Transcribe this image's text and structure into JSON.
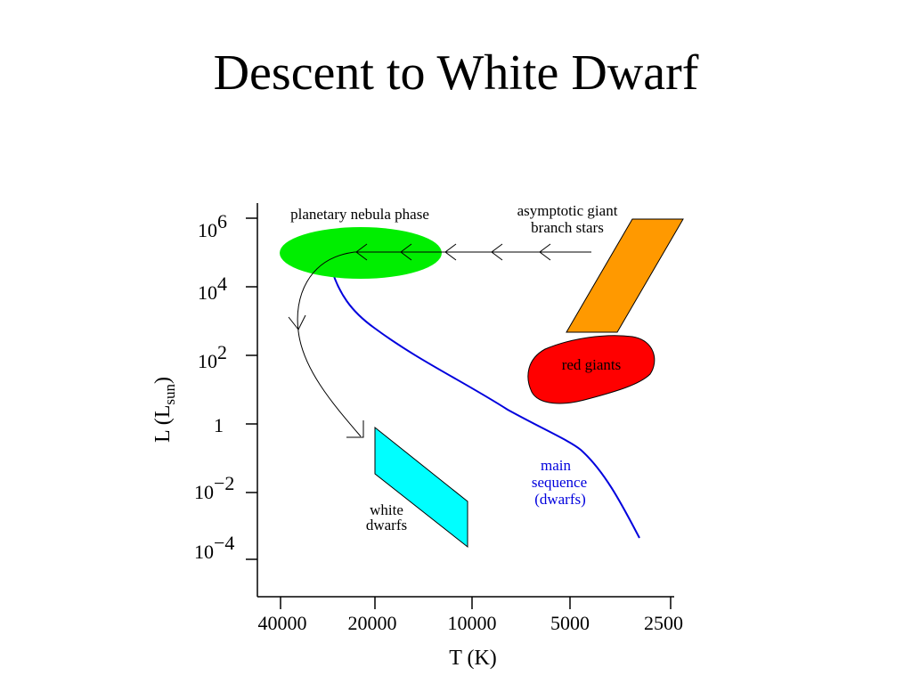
{
  "slide": {
    "title": "Descent to White Dwarf"
  },
  "diagram": {
    "y_axis": {
      "label_main": "L (L",
      "label_sub": "sun",
      "label_close": ")",
      "ticks": [
        {
          "base": "10",
          "exp": "6"
        },
        {
          "base": "10",
          "exp": "4"
        },
        {
          "base": "10",
          "exp": "2"
        },
        {
          "base": "1",
          "exp": ""
        },
        {
          "base": "10",
          "exp": "−2"
        },
        {
          "base": "10",
          "exp": "−4"
        }
      ]
    },
    "x_axis": {
      "label": "T (K)",
      "ticks": [
        "40000",
        "20000",
        "10000",
        "5000",
        "2500"
      ]
    },
    "regions": {
      "planetary_nebula": {
        "label": "planetary nebula phase",
        "color": "#00ee00"
      },
      "agb": {
        "label_line1": "asymptotic giant",
        "label_line2": "branch stars",
        "color": "#ff9900"
      },
      "red_giants": {
        "label": "red giants",
        "color": "#ff0000"
      },
      "white_dwarfs": {
        "label_line1": "white",
        "label_line2": "dwarfs",
        "color": "#00ffff"
      },
      "main_sequence": {
        "label_line1": "main",
        "label_line2": "sequence",
        "label_line3": "(dwarfs)",
        "color": "#0000dd"
      }
    }
  }
}
